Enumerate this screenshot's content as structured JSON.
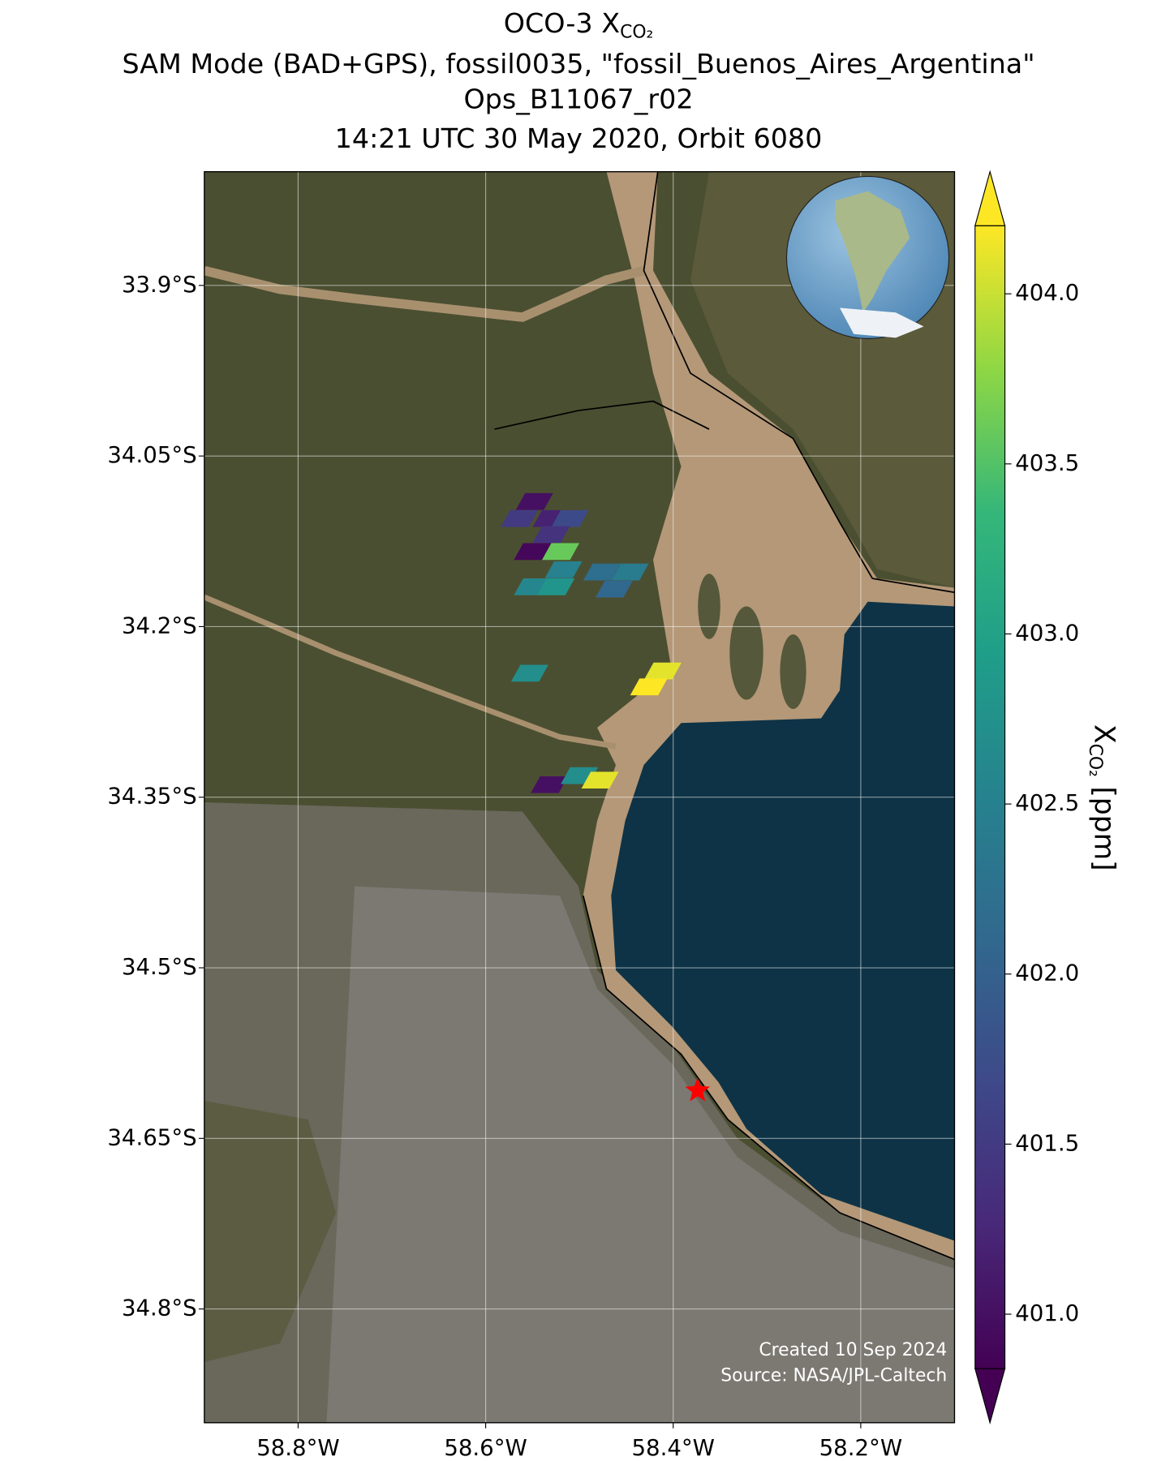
{
  "chart_data": {
    "type": "map",
    "title": {
      "text": "OCO-3 X",
      "subscript": "CO₂"
    },
    "subtitle": [
      "SAM Mode (BAD+GPS), fossil0035, \"fossil_Buenos_Aires_Argentina\"",
      "Ops_B11067_r02",
      "14:21 UTC 30 May 2020, Orbit 6080"
    ],
    "xlim": [
      -58.9,
      -58.1
    ],
    "ylim": [
      -34.9,
      -33.8
    ],
    "xticks": [
      {
        "value": -58.8,
        "label": "58.8°W"
      },
      {
        "value": -58.6,
        "label": "58.6°W"
      },
      {
        "value": -58.4,
        "label": "58.4°W"
      },
      {
        "value": -58.2,
        "label": "58.2°W"
      }
    ],
    "yticks": [
      {
        "value": -33.9,
        "label": "33.9°S"
      },
      {
        "value": -34.05,
        "label": "34.05°S"
      },
      {
        "value": -34.2,
        "label": "34.2°S"
      },
      {
        "value": -34.35,
        "label": "34.35°S"
      },
      {
        "value": -34.5,
        "label": "34.5°S"
      },
      {
        "value": -34.65,
        "label": "34.65°S"
      },
      {
        "value": -34.8,
        "label": "34.8°S"
      }
    ],
    "grid": true,
    "lon": [
      -58.548,
      -58.564,
      -58.53,
      -58.51,
      -58.53,
      -58.55,
      -58.52,
      -58.517,
      -58.55,
      -58.525,
      -58.476,
      -58.446,
      -58.463,
      -58.553,
      -58.411,
      -58.426,
      -58.532,
      -58.5,
      -58.478
    ],
    "lat": [
      -34.09,
      -34.105,
      -34.105,
      -34.105,
      -34.119,
      -34.134,
      -34.134,
      -34.15,
      -34.165,
      -34.165,
      -34.152,
      -34.152,
      -34.167,
      -34.241,
      -34.239,
      -34.253,
      -34.339,
      -34.331,
      -34.335
    ],
    "values": [
      401.0,
      401.5,
      401.2,
      401.7,
      401.4,
      400.9,
      403.6,
      402.5,
      402.6,
      402.8,
      402.2,
      402.4,
      402.1,
      402.7,
      404.1,
      404.2,
      401.0,
      402.7,
      404.1
    ],
    "target": {
      "lon": -58.374,
      "lat": -34.608,
      "color": "#ff0000"
    },
    "colormap": "viridis",
    "clim": [
      400.84,
      404.2
    ],
    "cticks": [
      {
        "value": 401,
        "label": "401.0"
      },
      401.5,
      {
        "value": 402,
        "label": "402.0"
      },
      402.5,
      {
        "value": 403,
        "label": "403.0"
      },
      403.5,
      {
        "value": 404,
        "label": "404.0"
      }
    ],
    "colorbar_label": {
      "text": "X",
      "subscript": "CO₂",
      "unit": "[ppm]"
    },
    "credits": [
      "Created 10 Sep 2024",
      "Source: NASA/JPL-Caltech"
    ]
  }
}
